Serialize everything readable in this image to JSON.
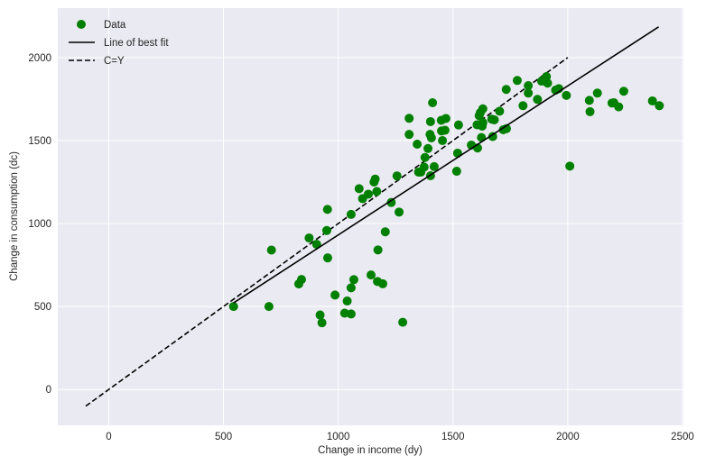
{
  "chart_data": {
    "type": "scatter",
    "title": "",
    "xlabel": "Change in income (dy)",
    "ylabel": "Change in consumption (dc)",
    "xlim": [
      -222,
      2504
    ],
    "ylim": [
      -216,
      2298
    ],
    "xticks": [
      0,
      500,
      1000,
      1500,
      2000,
      2500
    ],
    "yticks": [
      0,
      500,
      1000,
      1500,
      2000
    ],
    "grid": true,
    "legend_position": "upper left",
    "legend": [
      "Data",
      "Line of best fit",
      "C=Y"
    ],
    "colors": {
      "background": "#eaeaf2",
      "grid": "#ffffff",
      "data": "#008000",
      "best_fit": "#000000",
      "identity": "#000000"
    },
    "series": [
      {
        "name": "Data",
        "kind": "scatter",
        "points": [
          [
            544,
            500
          ],
          [
            698,
            500
          ],
          [
            709,
            840
          ],
          [
            828,
            636
          ],
          [
            840,
            663
          ],
          [
            873,
            913
          ],
          [
            906,
            875
          ],
          [
            954,
            793
          ],
          [
            921,
            449
          ],
          [
            929,
            402
          ],
          [
            986,
            569
          ],
          [
            1039,
            533
          ],
          [
            1028,
            460
          ],
          [
            1056,
            455
          ],
          [
            1056,
            613
          ],
          [
            1068,
            662
          ],
          [
            1143,
            690
          ],
          [
            1173,
            841
          ],
          [
            1171,
            651
          ],
          [
            1194,
            637
          ],
          [
            1205,
            950
          ],
          [
            1281,
            405
          ],
          [
            953,
            1085
          ],
          [
            950,
            958
          ],
          [
            1056,
            1055
          ],
          [
            1091,
            1210
          ],
          [
            1106,
            1150
          ],
          [
            1131,
            1177
          ],
          [
            1156,
            1250
          ],
          [
            1161,
            1268
          ],
          [
            1168,
            1193
          ],
          [
            1231,
            1127
          ],
          [
            1265,
            1069
          ],
          [
            1256,
            1287
          ],
          [
            1411,
            1728
          ],
          [
            1309,
            1634
          ],
          [
            1309,
            1537
          ],
          [
            1402,
            1614
          ],
          [
            1449,
            1622
          ],
          [
            1469,
            1633
          ],
          [
            1400,
            1537
          ],
          [
            1406,
            1516
          ],
          [
            1450,
            1558
          ],
          [
            1465,
            1562
          ],
          [
            1454,
            1500
          ],
          [
            1344,
            1478
          ],
          [
            1391,
            1452
          ],
          [
            1378,
            1398
          ],
          [
            1374,
            1340
          ],
          [
            1350,
            1310
          ],
          [
            1360,
            1310
          ],
          [
            1418,
            1343
          ],
          [
            1402,
            1288
          ],
          [
            1524,
            1594
          ],
          [
            1520,
            1424
          ],
          [
            1516,
            1315
          ],
          [
            1580,
            1473
          ],
          [
            1607,
            1455
          ],
          [
            1624,
            1518
          ],
          [
            1605,
            1595
          ],
          [
            1627,
            1587
          ],
          [
            1630,
            1608
          ],
          [
            1614,
            1650
          ],
          [
            1630,
            1691
          ],
          [
            1619,
            1668
          ],
          [
            1669,
            1629
          ],
          [
            1680,
            1625
          ],
          [
            1673,
            1524
          ],
          [
            1703,
            1677
          ],
          [
            1719,
            1565
          ],
          [
            1733,
            1572
          ],
          [
            1732,
            1808
          ],
          [
            1780,
            1862
          ],
          [
            1828,
            1831
          ],
          [
            1828,
            1786
          ],
          [
            1805,
            1710
          ],
          [
            1868,
            1748
          ],
          [
            1886,
            1858
          ],
          [
            1907,
            1885
          ],
          [
            1912,
            1846
          ],
          [
            1947,
            1804
          ],
          [
            1961,
            1813
          ],
          [
            1994,
            1772
          ],
          [
            2009,
            1346
          ],
          [
            2094,
            1742
          ],
          [
            2097,
            1674
          ],
          [
            2129,
            1786
          ],
          [
            2193,
            1726
          ],
          [
            2201,
            1728
          ],
          [
            2222,
            1703
          ],
          [
            2244,
            1797
          ],
          [
            2369,
            1739
          ],
          [
            2399,
            1710
          ]
        ]
      },
      {
        "name": "Line of best fit",
        "kind": "line",
        "style": "solid",
        "x": [
          544,
          2396
        ],
        "y": [
          522,
          2185
        ]
      },
      {
        "name": "C=Y",
        "kind": "line",
        "style": "dashed",
        "x": [
          -100,
          2000
        ],
        "y": [
          -100,
          2000
        ]
      }
    ]
  }
}
